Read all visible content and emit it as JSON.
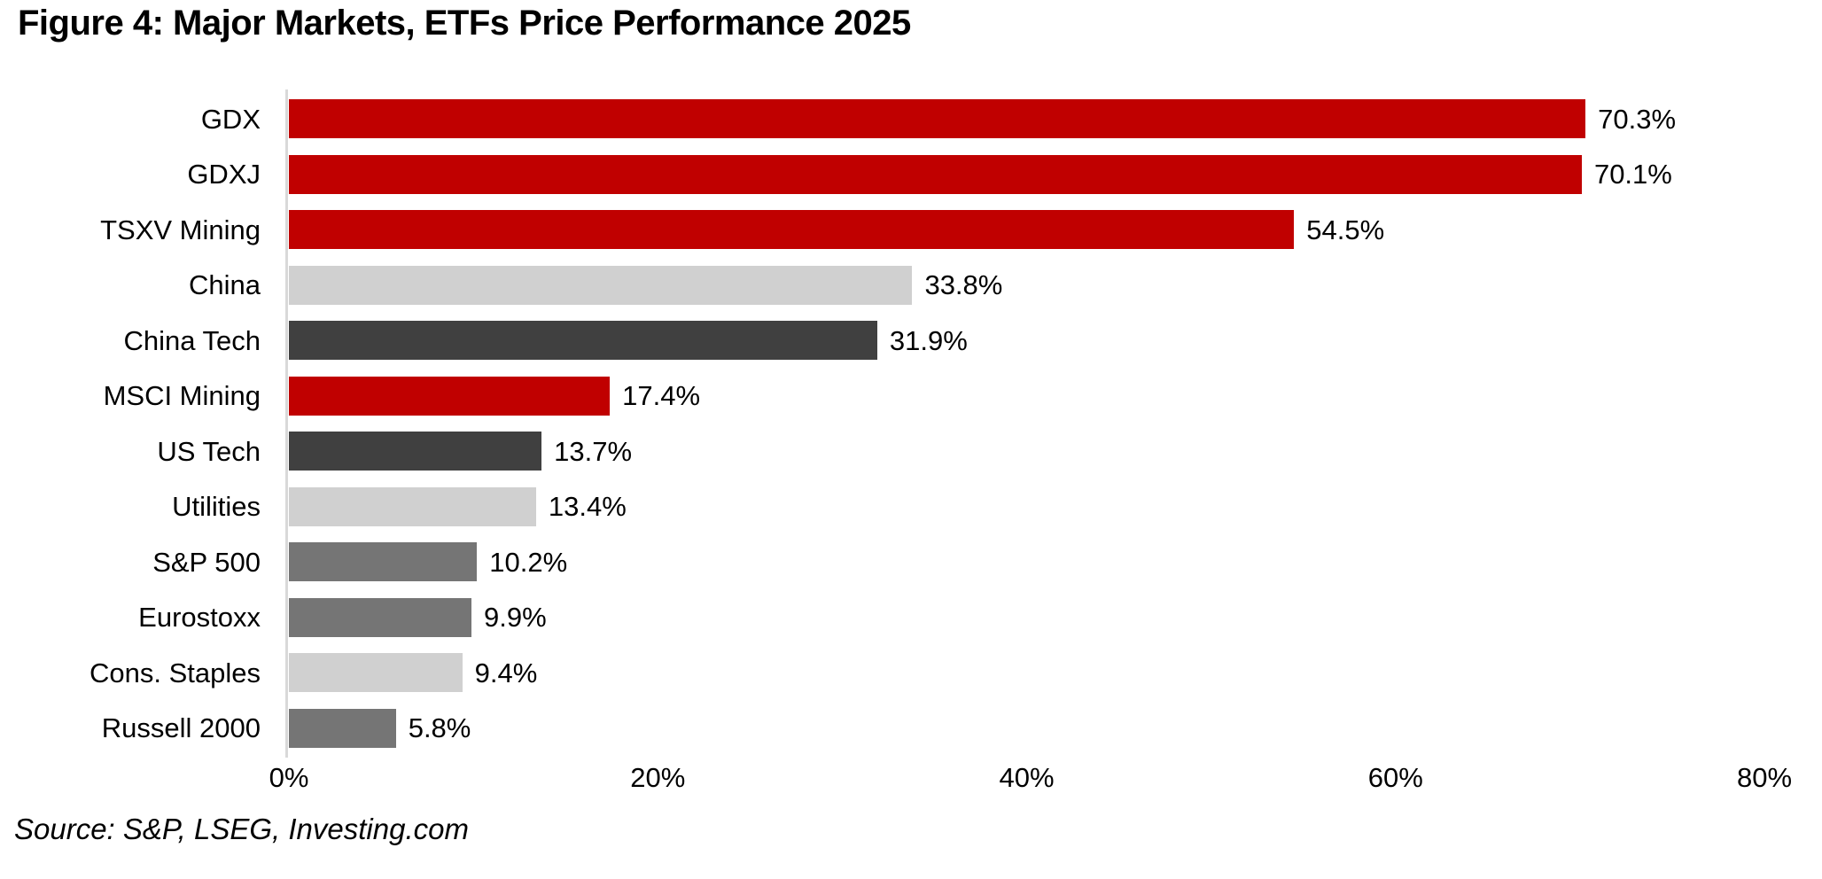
{
  "title": "Figure 4: Major Markets, ETFs Price Performance 2025",
  "source": "Source: S&P, LSEG, Investing.com",
  "chart_data": {
    "type": "bar",
    "orientation": "horizontal",
    "title": "Figure 4: Major Markets, ETFs Price Performance 2025",
    "xlabel": "",
    "ylabel": "",
    "grid": false,
    "legend": false,
    "xlim": [
      0,
      80
    ],
    "categories": [
      "GDX",
      "GDXJ",
      "TSXV Mining",
      "China",
      "China Tech",
      "MSCI Mining",
      "US Tech",
      "Utilities",
      "S&P 500",
      "Eurostoxx",
      "Cons. Staples",
      "Russell 2000"
    ],
    "values": [
      70.3,
      70.1,
      54.5,
      33.8,
      31.9,
      17.4,
      13.7,
      13.4,
      10.2,
      9.9,
      9.4,
      5.8
    ],
    "value_labels": [
      "70.3%",
      "70.1%",
      "54.5%",
      "33.8%",
      "31.9%",
      "17.4%",
      "13.7%",
      "13.4%",
      "10.2%",
      "9.9%",
      "9.4%",
      "5.8%"
    ],
    "bar_colors": [
      "#c00000",
      "#c00000",
      "#c00000",
      "#d0d0d0",
      "#404040",
      "#c00000",
      "#404040",
      "#d0d0d0",
      "#757575",
      "#757575",
      "#d0d0d0",
      "#757575"
    ],
    "palette": {
      "red": "#c00000",
      "dark_charcoal": "#404040",
      "medium_gray": "#757575",
      "light_gray": "#d0d0d0",
      "axis_line": "#d9d9d9"
    },
    "x_ticks": [
      {
        "value": 0,
        "label": "0%"
      },
      {
        "value": 20,
        "label": "20%"
      },
      {
        "value": 40,
        "label": "40%"
      },
      {
        "value": 60,
        "label": "60%"
      },
      {
        "value": 80,
        "label": "80%"
      }
    ]
  }
}
